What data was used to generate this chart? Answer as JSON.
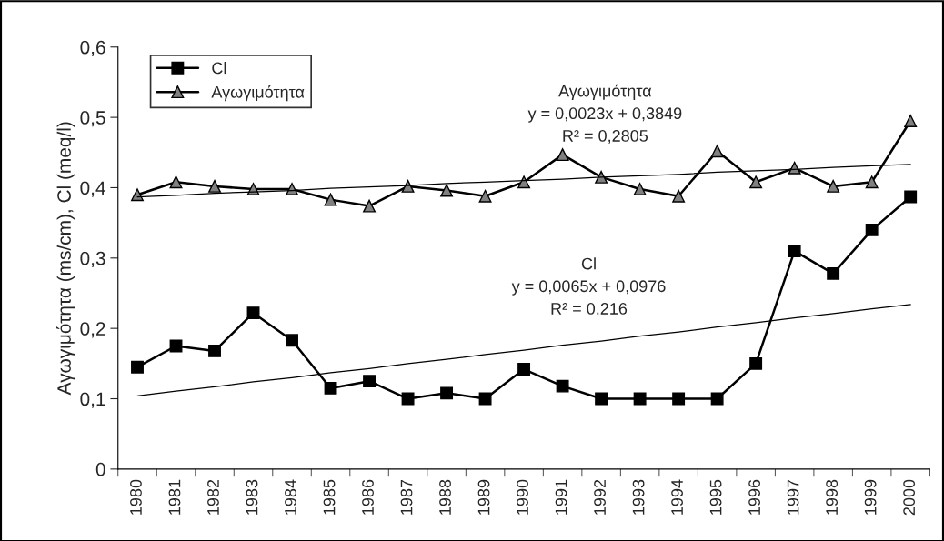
{
  "chart_data": {
    "type": "line",
    "ylabel": "Αγωγιμότητα (ms/cm), Cl (meq/l)",
    "categories": [
      "1980",
      "1981",
      "1982",
      "1983",
      "1984",
      "1985",
      "1986",
      "1987",
      "1988",
      "1989",
      "1990",
      "1991",
      "1992",
      "1993",
      "1994",
      "1995",
      "1996",
      "1997",
      "1998",
      "1999",
      "2000"
    ],
    "series": [
      {
        "name": "Cl",
        "color": "#000000",
        "marker": "square",
        "values": [
          0.145,
          0.175,
          0.168,
          0.222,
          0.183,
          0.115,
          0.125,
          0.1,
          0.108,
          0.1,
          0.142,
          0.118,
          0.1,
          0.1,
          0.1,
          0.1,
          0.15,
          0.31,
          0.278,
          0.34,
          0.387
        ]
      },
      {
        "name": "Αγωγιμότητα",
        "color": "#808080",
        "marker": "triangle",
        "values": [
          0.39,
          0.408,
          0.402,
          0.398,
          0.398,
          0.383,
          0.374,
          0.402,
          0.396,
          0.388,
          0.408,
          0.447,
          0.415,
          0.398,
          0.388,
          0.452,
          0.408,
          0.428,
          0.402,
          0.408,
          0.495
        ]
      },
      {
        "type": "line",
        "color": "#000000",
        "marker": "none",
        "values": [
          0.104,
          0.111,
          0.117,
          0.124,
          0.13,
          0.137,
          0.143,
          0.15,
          0.156,
          0.163,
          0.169,
          0.176,
          0.182,
          0.189,
          0.195,
          0.202,
          0.208,
          0.215,
          0.221,
          0.228,
          0.234
        ]
      },
      {
        "type": "line",
        "color": "#000000",
        "marker": "none",
        "values": [
          0.387,
          0.389,
          0.392,
          0.394,
          0.396,
          0.399,
          0.401,
          0.403,
          0.406,
          0.408,
          0.41,
          0.412,
          0.415,
          0.417,
          0.419,
          0.422,
          0.424,
          0.426,
          0.429,
          0.431,
          0.433
        ]
      }
    ],
    "ylim": [
      0,
      0.6
    ],
    "yticks": [
      {
        "value": 0,
        "label": "0"
      },
      {
        "value": 0.1,
        "label": "0,1"
      },
      {
        "value": 0.2,
        "label": "0,2"
      },
      {
        "value": 0.3,
        "label": "0,3"
      },
      {
        "value": 0.4,
        "label": "0,4"
      },
      {
        "value": 0.5,
        "label": "0,5"
      },
      {
        "value": 0.6,
        "label": "0,6"
      }
    ],
    "grid": false,
    "legend": "top left",
    "annotations": [
      "Αγωγιμότητα\ny = 0,0023x + 0,3849\nR² = 0,2805",
      "Cl\ny = 0,0065x + 0,0976\nR² = 0,216"
    ]
  }
}
